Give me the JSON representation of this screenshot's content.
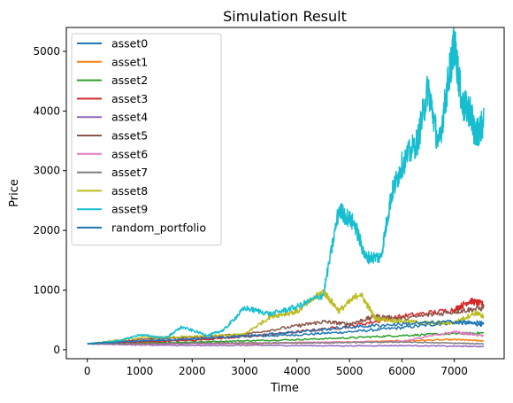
{
  "chart_data": {
    "type": "line",
    "title": "Simulation Result",
    "xlabel": "Time",
    "ylabel": "Price",
    "xlim": [
      -400,
      7950
    ],
    "ylim": [
      -150,
      5400
    ],
    "xticks": [
      0,
      1000,
      2000,
      3000,
      4000,
      5000,
      6000,
      7000
    ],
    "yticks": [
      0,
      1000,
      2000,
      3000,
      4000,
      5000
    ],
    "grid": false,
    "legend_position": "top-left",
    "series": [
      {
        "name": "asset0",
        "color": "#1f77b4",
        "points": [
          [
            0,
            100
          ],
          [
            1000,
            140
          ],
          [
            2000,
            180
          ],
          [
            3000,
            220
          ],
          [
            4000,
            250
          ],
          [
            5000,
            300
          ],
          [
            6000,
            370
          ],
          [
            7000,
            460
          ],
          [
            7560,
            420
          ]
        ]
      },
      {
        "name": "asset1",
        "color": "#ff7f0e",
        "points": [
          [
            0,
            100
          ],
          [
            1000,
            90
          ],
          [
            2000,
            110
          ],
          [
            3000,
            100
          ],
          [
            4000,
            120
          ],
          [
            5000,
            130
          ],
          [
            6000,
            150
          ],
          [
            7000,
            170
          ],
          [
            7560,
            150
          ]
        ]
      },
      {
        "name": "asset2",
        "color": "#2ca02c",
        "points": [
          [
            0,
            100
          ],
          [
            1000,
            110
          ],
          [
            2000,
            130
          ],
          [
            3000,
            150
          ],
          [
            4000,
            170
          ],
          [
            5000,
            200
          ],
          [
            6000,
            240
          ],
          [
            7000,
            270
          ],
          [
            7560,
            280
          ]
        ]
      },
      {
        "name": "asset3",
        "color": "#d62728",
        "points": [
          [
            0,
            100
          ],
          [
            1000,
            130
          ],
          [
            2000,
            160
          ],
          [
            3000,
            220
          ],
          [
            4000,
            300
          ],
          [
            5000,
            390
          ],
          [
            6000,
            560
          ],
          [
            7000,
            670
          ],
          [
            7300,
            820
          ],
          [
            7560,
            760
          ]
        ]
      },
      {
        "name": "asset4",
        "color": "#9467bd",
        "points": [
          [
            0,
            100
          ],
          [
            1000,
            80
          ],
          [
            2000,
            70
          ],
          [
            3000,
            75
          ],
          [
            4000,
            70
          ],
          [
            5000,
            65
          ],
          [
            6000,
            70
          ],
          [
            7000,
            60
          ],
          [
            7560,
            55
          ]
        ]
      },
      {
        "name": "asset5",
        "color": "#8c564b",
        "points": [
          [
            0,
            100
          ],
          [
            1000,
            170
          ],
          [
            2000,
            210
          ],
          [
            3000,
            260
          ],
          [
            4000,
            400
          ],
          [
            4500,
            470
          ],
          [
            5000,
            430
          ],
          [
            5500,
            560
          ],
          [
            6000,
            520
          ],
          [
            7000,
            640
          ],
          [
            7560,
            700
          ]
        ]
      },
      {
        "name": "asset6",
        "color": "#e377c2",
        "points": [
          [
            0,
            100
          ],
          [
            1000,
            90
          ],
          [
            2000,
            100
          ],
          [
            3000,
            110
          ],
          [
            4000,
            120
          ],
          [
            5000,
            130
          ],
          [
            6000,
            140
          ],
          [
            7000,
            300
          ],
          [
            7560,
            230
          ]
        ]
      },
      {
        "name": "asset7",
        "color": "#7f7f7f",
        "points": [
          [
            0,
            100
          ],
          [
            1000,
            100
          ],
          [
            2000,
            110
          ],
          [
            3000,
            115
          ],
          [
            4000,
            110
          ],
          [
            5000,
            120
          ],
          [
            6000,
            130
          ],
          [
            7000,
            110
          ],
          [
            7560,
            100
          ]
        ]
      },
      {
        "name": "asset8",
        "color": "#bcbd22",
        "points": [
          [
            0,
            100
          ],
          [
            1000,
            200
          ],
          [
            2000,
            220
          ],
          [
            3000,
            260
          ],
          [
            3500,
            560
          ],
          [
            4000,
            640
          ],
          [
            4500,
            980
          ],
          [
            4800,
            650
          ],
          [
            5200,
            950
          ],
          [
            5500,
            520
          ],
          [
            6000,
            480
          ],
          [
            6500,
            450
          ],
          [
            7000,
            450
          ],
          [
            7400,
            620
          ],
          [
            7560,
            560
          ]
        ]
      },
      {
        "name": "asset9",
        "color": "#17becf",
        "points": [
          [
            0,
            100
          ],
          [
            600,
            150
          ],
          [
            1000,
            250
          ],
          [
            1500,
            200
          ],
          [
            1800,
            380
          ],
          [
            2300,
            240
          ],
          [
            2600,
            330
          ],
          [
            3000,
            700
          ],
          [
            3500,
            600
          ],
          [
            4000,
            720
          ],
          [
            4500,
            920
          ],
          [
            4800,
            2350
          ],
          [
            5100,
            2100
          ],
          [
            5300,
            1550
          ],
          [
            5600,
            1550
          ],
          [
            5800,
            2600
          ],
          [
            6000,
            3100
          ],
          [
            6300,
            3500
          ],
          [
            6500,
            4400
          ],
          [
            6700,
            3400
          ],
          [
            6900,
            4600
          ],
          [
            7000,
            5150
          ],
          [
            7150,
            4100
          ],
          [
            7300,
            4000
          ],
          [
            7400,
            3600
          ],
          [
            7560,
            3800
          ]
        ]
      },
      {
        "name": "random_portfolio",
        "color": "#1f77b4",
        "points": [
          [
            0,
            100
          ],
          [
            1000,
            150
          ],
          [
            2000,
            180
          ],
          [
            3000,
            230
          ],
          [
            4000,
            300
          ],
          [
            5000,
            380
          ],
          [
            6000,
            430
          ],
          [
            7000,
            470
          ],
          [
            7560,
            450
          ]
        ]
      }
    ]
  }
}
